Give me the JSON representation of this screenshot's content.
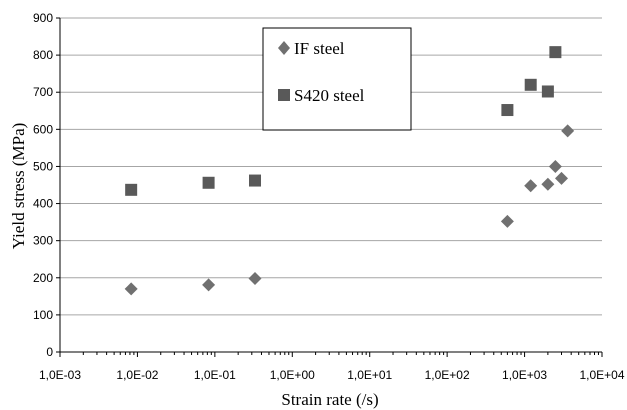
{
  "chart_data": {
    "type": "scatter",
    "xlabel": "Strain rate (/s)",
    "ylabel": "Yield stress (MPa)",
    "x_scale": "log",
    "xlim": [
      0.001,
      10000
    ],
    "ylim": [
      0,
      900
    ],
    "y_ticks": [
      0,
      100,
      200,
      300,
      400,
      500,
      600,
      700,
      800,
      900
    ],
    "x_tick_labels": [
      "1,0E-03",
      "1,0E-02",
      "1,0E-01",
      "1,0E+00",
      "1,0E+01",
      "1,0E+02",
      "1,0E+03",
      "1,0E+04"
    ],
    "grid": "horizontal",
    "legend_position": "top-center",
    "series": [
      {
        "name": "IF steel",
        "marker": "diamond",
        "color": "#707070",
        "points": [
          {
            "x": 0.0083,
            "y": 170
          },
          {
            "x": 0.083,
            "y": 181
          },
          {
            "x": 0.33,
            "y": 198
          },
          {
            "x": 600,
            "y": 352
          },
          {
            "x": 1200,
            "y": 448
          },
          {
            "x": 2000,
            "y": 452
          },
          {
            "x": 2500,
            "y": 500
          },
          {
            "x": 3000,
            "y": 468
          },
          {
            "x": 3600,
            "y": 596
          }
        ]
      },
      {
        "name": "S420 steel",
        "marker": "square",
        "color": "#595959",
        "points": [
          {
            "x": 0.0083,
            "y": 437
          },
          {
            "x": 0.083,
            "y": 456
          },
          {
            "x": 0.33,
            "y": 462
          },
          {
            "x": 600,
            "y": 652
          },
          {
            "x": 1200,
            "y": 720
          },
          {
            "x": 2000,
            "y": 702
          },
          {
            "x": 2500,
            "y": 808
          }
        ]
      }
    ]
  }
}
